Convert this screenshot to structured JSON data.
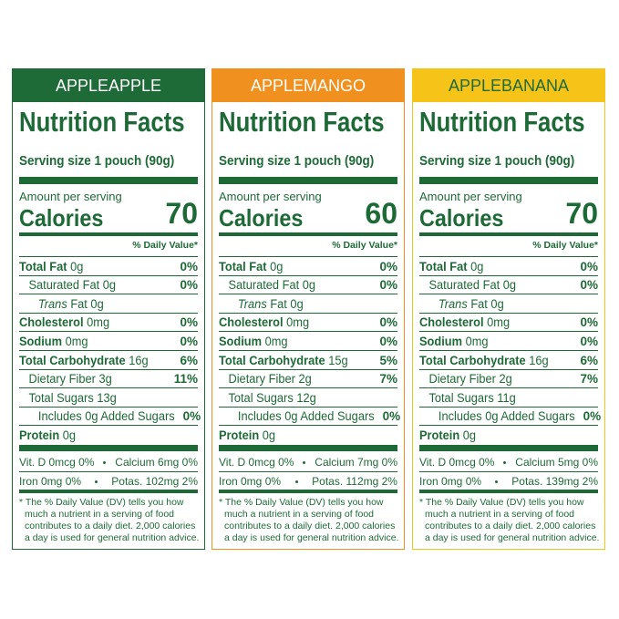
{
  "labels": [
    {
      "name": "APPLEAPPLE",
      "color": "#1f6b38",
      "text_color": "#ffffff",
      "title": "Nutrition Facts",
      "serving": "Serving size 1 pouch (90g)",
      "amount": "Amount per serving",
      "calories_label": "Calories",
      "calories": 70,
      "dv_header": "% Daily Value*",
      "rows": [
        {
          "label": "Total Fat",
          "amount": "0g",
          "dv": "0%"
        },
        {
          "label": "Saturated Fat",
          "amount": "0g",
          "dv": "0%"
        },
        {
          "italic": "Trans",
          "label": "Fat",
          "amount": "0g"
        },
        {
          "label": "Cholesterol",
          "amount": "0mg",
          "dv": "0%"
        },
        {
          "label": "Sodium",
          "amount": "0mg",
          "dv": "0%"
        },
        {
          "label": "Total Carbohydrate",
          "amount": "16g",
          "dv": "6%"
        },
        {
          "label": "Dietary Fiber",
          "amount": "3g",
          "dv": "11%"
        },
        {
          "label": "Total Sugars",
          "amount": "13g"
        },
        {
          "label": "Includes 0g Added Sugars",
          "dv": "0%"
        },
        {
          "label": "Protein",
          "amount": "0g"
        }
      ],
      "vitamins": [
        [
          "Vit. D 0mcg 0%",
          "Calcium 6mg 0%"
        ],
        [
          "Iron 0mg 0%",
          "Potas. 102mg 2%"
        ]
      ],
      "footnote": [
        "* The % Daily Value (DV) tells you how",
        "much a nutrient in a serving of food",
        "contributes to a daily diet. 2,000 calories",
        "a day is used for general nutrition advice."
      ]
    },
    {
      "name": "APPLEMANGO",
      "color": "#f0901f",
      "text_color": "#ffffff",
      "title": "Nutrition Facts",
      "serving": "Serving size 1 pouch (90g)",
      "amount": "Amount per serving",
      "calories_label": "Calories",
      "calories": 60,
      "dv_header": "% Daily Value*",
      "rows": [
        {
          "label": "Total Fat",
          "amount": "0g",
          "dv": "0%"
        },
        {
          "label": "Saturated Fat",
          "amount": "0g",
          "dv": "0%"
        },
        {
          "italic": "Trans",
          "label": "Fat",
          "amount": "0g"
        },
        {
          "label": "Cholesterol",
          "amount": "0mg",
          "dv": "0%"
        },
        {
          "label": "Sodium",
          "amount": "0mg",
          "dv": "0%"
        },
        {
          "label": "Total Carbohydrate",
          "amount": "15g",
          "dv": "5%"
        },
        {
          "label": "Dietary Fiber",
          "amount": "2g",
          "dv": "7%"
        },
        {
          "label": "Total Sugars",
          "amount": "12g"
        },
        {
          "label": "Includes 0g Added Sugars",
          "dv": "0%"
        },
        {
          "label": "Protein",
          "amount": "0g"
        }
      ],
      "vitamins": [
        [
          "Vit. D 0mcg 0%",
          "Calcium 7mg 0%"
        ],
        [
          "Iron 0mg 0%",
          "Potas. 112mg 2%"
        ]
      ],
      "footnote": [
        "* The % Daily Value (DV) tells you how",
        "much a nutrient in a serving of food",
        "contributes to a daily diet. 2,000 calories",
        "a day is used for general nutrition advice."
      ]
    },
    {
      "name": "APPLEBANANA",
      "color": "#f6c419",
      "text_color": "#1f6b38",
      "title": "Nutrition Facts",
      "serving": "Serving size 1 pouch (90g)",
      "amount": "Amount per serving",
      "calories_label": "Calories",
      "calories": 70,
      "dv_header": "% Daily Value*",
      "rows": [
        {
          "label": "Total Fat",
          "amount": "0g",
          "dv": "0%"
        },
        {
          "label": "Saturated Fat",
          "amount": "0g",
          "dv": "0%"
        },
        {
          "italic": "Trans",
          "label": "Fat",
          "amount": "0g"
        },
        {
          "label": "Cholesterol",
          "amount": "0mg",
          "dv": "0%"
        },
        {
          "label": "Sodium",
          "amount": "0mg",
          "dv": "0%"
        },
        {
          "label": "Total Carbohydrate",
          "amount": "16g",
          "dv": "6%"
        },
        {
          "label": "Dietary Fiber",
          "amount": "2g",
          "dv": "7%"
        },
        {
          "label": "Total Sugars",
          "amount": "11g"
        },
        {
          "label": "Includes 0g Added Sugars",
          "dv": "0%"
        },
        {
          "label": "Protein",
          "amount": "0g"
        }
      ],
      "vitamins": [
        [
          "Vit. D 0mcg 0%",
          "Calcium 5mg 0%"
        ],
        [
          "Iron 0mg 0%",
          "Potas. 139mg 2%"
        ]
      ],
      "footnote": [
        "* The % Daily Value (DV) tells you how",
        "much a nutrient in a serving of food",
        "contributes to a daily diet. 2,000 calories",
        "a day is used for general nutrition advice."
      ]
    }
  ]
}
